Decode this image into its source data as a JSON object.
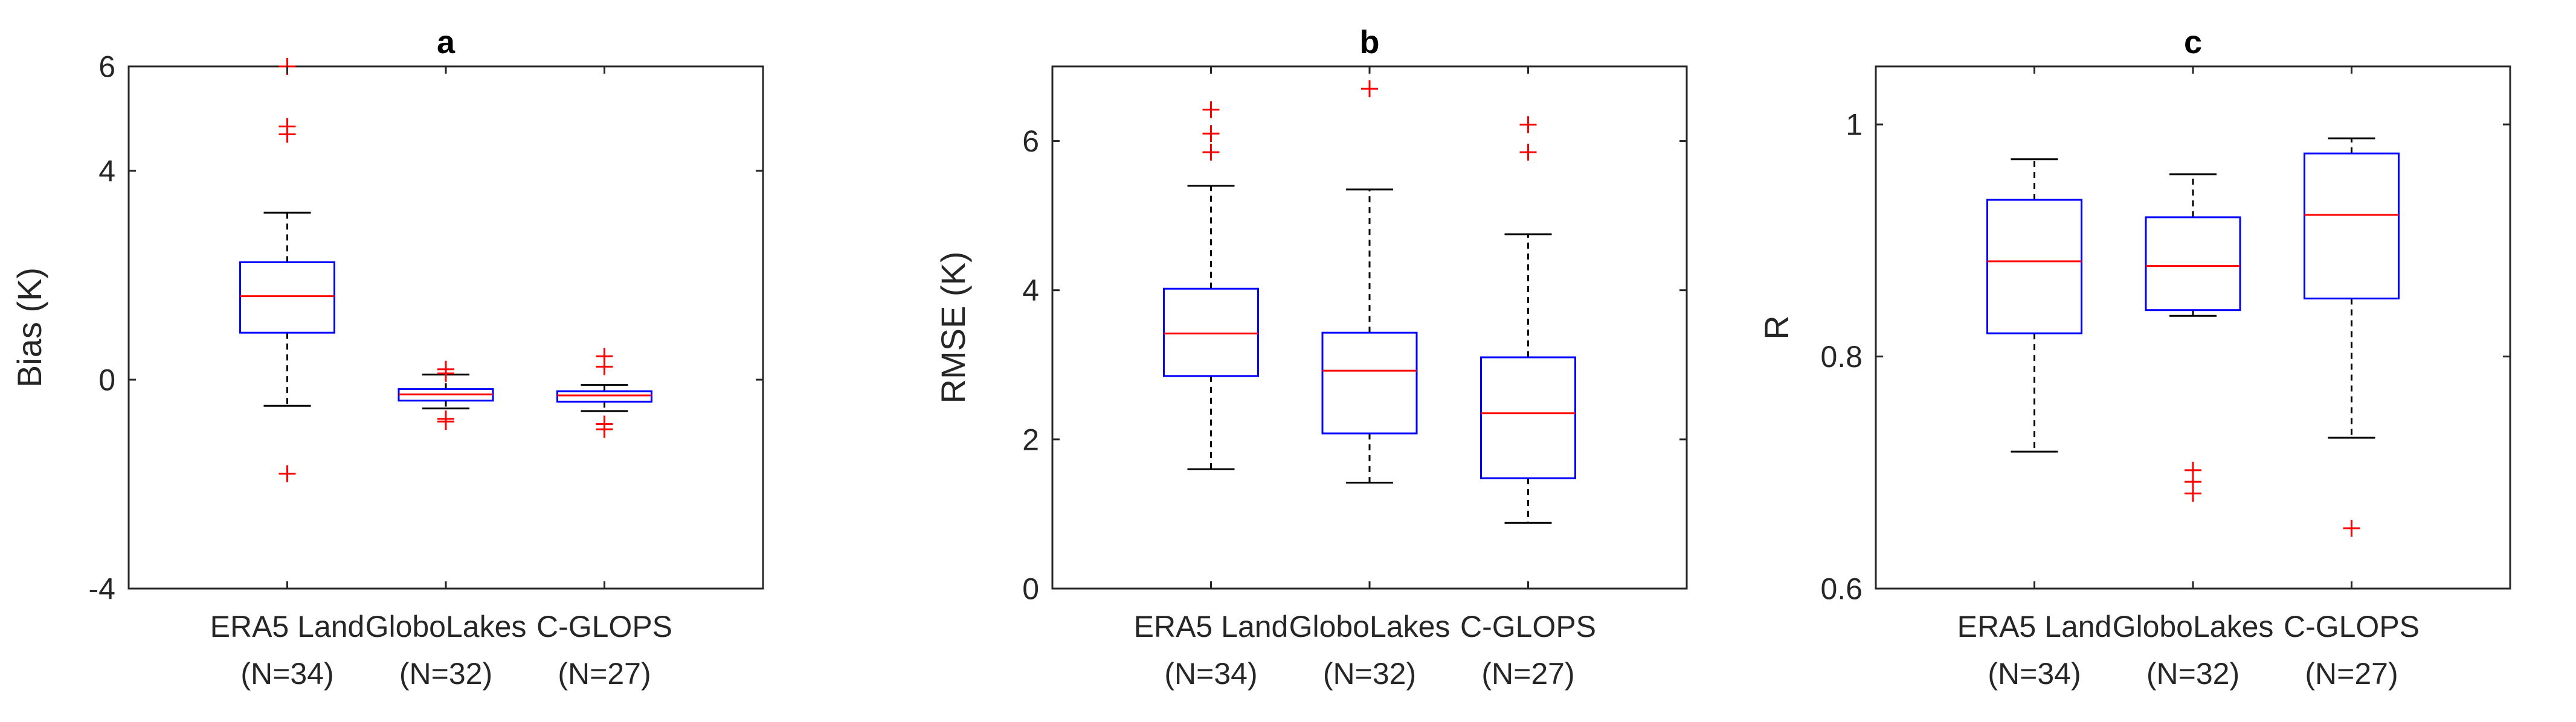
{
  "colors": {
    "box": "#0000ff",
    "median": "#ff0000",
    "outlier": "#ff0000",
    "whisker": "#000000",
    "axis": "#262626"
  },
  "chart_data": [
    {
      "type": "boxplot",
      "title": "a",
      "xlabel": "",
      "ylabel": "Bias (K)",
      "ylim": [
        -4,
        6
      ],
      "yticks": [
        -4,
        0,
        4,
        6
      ],
      "ytick_labels": [
        "-4",
        "0",
        "4",
        "6"
      ],
      "grid": false,
      "categories": [
        {
          "name": "ERA5 Land",
          "n": "(N=34)",
          "whisker_low": -0.5,
          "q1": 0.9,
          "median": 1.6,
          "q3": 2.25,
          "whisker_high": 3.2,
          "outliers": [
            6.0,
            4.85,
            4.7,
            -1.8
          ]
        },
        {
          "name": "GloboLakes",
          "n": "(N=32)",
          "whisker_low": -0.55,
          "q1": -0.4,
          "median": -0.28,
          "q3": -0.18,
          "whisker_high": 0.1,
          "outliers": [
            0.2,
            0.12,
            -0.75,
            -0.8
          ]
        },
        {
          "name": "C-GLOPS",
          "n": "(N=27)",
          "whisker_low": -0.6,
          "q1": -0.42,
          "median": -0.3,
          "q3": -0.22,
          "whisker_high": -0.1,
          "outliers": [
            0.45,
            0.25,
            -0.85,
            -0.95
          ]
        }
      ]
    },
    {
      "type": "boxplot",
      "title": "b",
      "xlabel": "",
      "ylabel": "RMSE (K)",
      "ylim": [
        0,
        7
      ],
      "yticks": [
        0,
        2,
        4,
        6
      ],
      "ytick_labels": [
        "0",
        "2",
        "4",
        "6"
      ],
      "grid": false,
      "categories": [
        {
          "name": "ERA5 Land",
          "n": "(N=34)",
          "whisker_low": 1.6,
          "q1": 2.85,
          "median": 3.42,
          "q3": 4.02,
          "whisker_high": 5.4,
          "outliers": [
            6.42,
            6.1,
            5.85
          ]
        },
        {
          "name": "GloboLakes",
          "n": "(N=32)",
          "whisker_low": 1.42,
          "q1": 2.08,
          "median": 2.92,
          "q3": 3.43,
          "whisker_high": 5.35,
          "outliers": [
            6.7
          ]
        },
        {
          "name": "C-GLOPS",
          "n": "(N=27)",
          "whisker_low": 0.88,
          "q1": 1.48,
          "median": 2.35,
          "q3": 3.1,
          "whisker_high": 4.75,
          "outliers": [
            6.22,
            5.85
          ]
        }
      ]
    },
    {
      "type": "boxplot",
      "title": "c",
      "xlabel": "",
      "ylabel": "R",
      "ylim": [
        0.6,
        1.05
      ],
      "yticks": [
        0.6,
        0.8,
        1.0
      ],
      "ytick_labels": [
        "0.6",
        "0.8",
        "1"
      ],
      "grid": false,
      "categories": [
        {
          "name": "ERA5 Land",
          "n": "(N=34)",
          "whisker_low": 0.718,
          "q1": 0.82,
          "median": 0.882,
          "q3": 0.935,
          "whisker_high": 0.97,
          "outliers": []
        },
        {
          "name": "GloboLakes",
          "n": "(N=32)",
          "whisker_low": 0.835,
          "q1": 0.84,
          "median": 0.878,
          "q3": 0.92,
          "whisker_high": 0.957,
          "outliers": [
            0.702,
            0.692,
            0.682
          ]
        },
        {
          "name": "C-GLOPS",
          "n": "(N=27)",
          "whisker_low": 0.73,
          "q1": 0.85,
          "median": 0.922,
          "q3": 0.975,
          "whisker_high": 0.988,
          "outliers": [
            0.652
          ]
        }
      ]
    }
  ]
}
